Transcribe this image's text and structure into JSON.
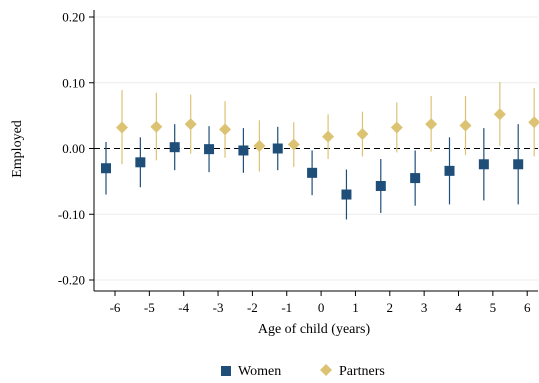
{
  "chart_data": {
    "type": "scatter",
    "subtype": "coefficient plot with confidence intervals",
    "xlabel": "Age of child (years)",
    "ylabel": "Employed",
    "x": [
      -6,
      -5,
      -4,
      -3,
      -2,
      -1,
      0,
      1,
      2,
      3,
      4,
      5,
      6
    ],
    "x_tick_labels": [
      "-6",
      "-5",
      "-4",
      "-3",
      "-2",
      "-1",
      "0",
      "1",
      "2",
      "3",
      "4",
      "5",
      "6"
    ],
    "ylim": [
      -0.2,
      0.2
    ],
    "y_ticks": [
      0.2,
      0.1,
      0.0,
      -0.1,
      -0.2
    ],
    "y_tick_labels": [
      "0.20",
      "0.10",
      "0.00",
      "-0.10",
      "-0.20"
    ],
    "grid": "horizontal",
    "reference_line": {
      "y": 0.0,
      "style": "dashed"
    },
    "legend": {
      "position": "bottom"
    },
    "series": [
      {
        "name": "Women",
        "color": "#1f4e79",
        "marker": "square",
        "values": [
          -0.03,
          -0.021,
          0.002,
          -0.001,
          -0.003,
          0.0,
          -0.037,
          -0.07,
          -0.057,
          -0.045,
          -0.034,
          -0.024,
          -0.024
        ],
        "ci_low": [
          -0.07,
          -0.059,
          -0.033,
          -0.036,
          -0.037,
          -0.033,
          -0.071,
          -0.108,
          -0.098,
          -0.087,
          -0.085,
          -0.079,
          -0.085
        ],
        "ci_high": [
          0.01,
          0.017,
          0.037,
          0.034,
          0.031,
          0.033,
          -0.003,
          -0.032,
          -0.016,
          -0.003,
          0.017,
          0.031,
          0.037
        ]
      },
      {
        "name": "Partners",
        "color": "#dcc373",
        "marker": "diamond",
        "values": [
          0.032,
          0.033,
          0.037,
          0.029,
          0.004,
          0.006,
          0.018,
          0.022,
          0.032,
          0.037,
          0.035,
          0.052,
          0.04
        ],
        "ci_low": [
          -0.024,
          -0.018,
          -0.008,
          -0.014,
          -0.035,
          -0.028,
          -0.016,
          -0.012,
          -0.006,
          -0.005,
          -0.01,
          0.004,
          -0.012
        ],
        "ci_high": [
          0.089,
          0.085,
          0.082,
          0.072,
          0.043,
          0.04,
          0.052,
          0.056,
          0.07,
          0.08,
          0.08,
          0.101,
          0.092
        ]
      }
    ]
  }
}
